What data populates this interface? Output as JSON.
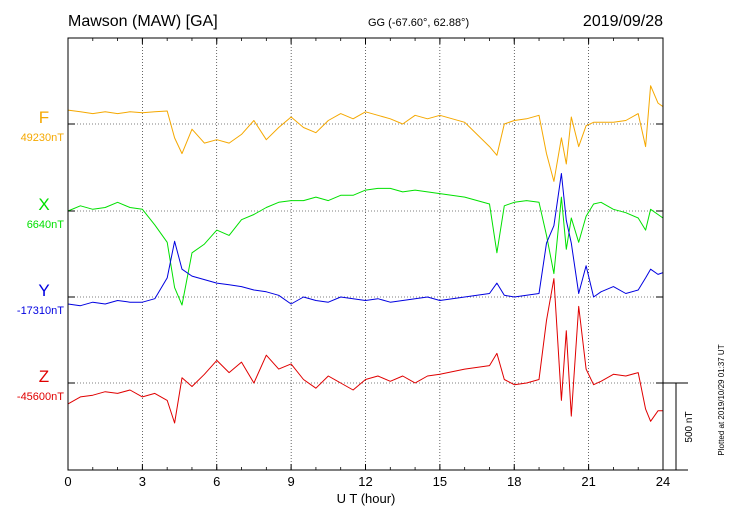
{
  "header": {
    "station": "Mawson (MAW)  [GA]",
    "coords": "GG (-67.60°,  62.88°)",
    "date": "2019/09/28"
  },
  "footer": {
    "plotted": "Plotted at 2019/10/29 01:37  UT"
  },
  "chart_data": {
    "type": "line",
    "xlabel": "U T (hour)",
    "xlim": [
      0,
      24
    ],
    "xticks": [
      "0",
      "3",
      "6",
      "9",
      "12",
      "15",
      "18",
      "21",
      "24"
    ],
    "scale_bar": {
      "label": "500 nT",
      "value": 500
    },
    "grid": true,
    "series": [
      {
        "name": "F",
        "baseline_label": "49230nT",
        "baseline": 49230,
        "color": "#f5a800",
        "points": [
          [
            0,
            49310
          ],
          [
            0.5,
            49300
          ],
          [
            1,
            49290
          ],
          [
            1.5,
            49300
          ],
          [
            2,
            49290
          ],
          [
            2.5,
            49300
          ],
          [
            3,
            49295
          ],
          [
            3.5,
            49300
          ],
          [
            4,
            49305
          ],
          [
            4.3,
            49150
          ],
          [
            4.6,
            49060
          ],
          [
            5,
            49200
          ],
          [
            5.5,
            49120
          ],
          [
            6,
            49140
          ],
          [
            6.5,
            49120
          ],
          [
            7,
            49170
          ],
          [
            7.5,
            49250
          ],
          [
            8,
            49140
          ],
          [
            8.5,
            49210
          ],
          [
            9,
            49270
          ],
          [
            9.5,
            49210
          ],
          [
            10,
            49180
          ],
          [
            10.5,
            49250
          ],
          [
            11,
            49290
          ],
          [
            11.5,
            49260
          ],
          [
            12,
            49300
          ],
          [
            12.5,
            49280
          ],
          [
            13,
            49260
          ],
          [
            13.5,
            49230
          ],
          [
            14,
            49280
          ],
          [
            14.5,
            49260
          ],
          [
            15,
            49280
          ],
          [
            16,
            49240
          ],
          [
            17,
            49100
          ],
          [
            17.3,
            49050
          ],
          [
            17.6,
            49230
          ],
          [
            18,
            49250
          ],
          [
            18.5,
            49260
          ],
          [
            19,
            49280
          ],
          [
            19.3,
            49060
          ],
          [
            19.6,
            48900
          ],
          [
            19.9,
            49150
          ],
          [
            20.1,
            49000
          ],
          [
            20.3,
            49270
          ],
          [
            20.6,
            49100
          ],
          [
            20.9,
            49220
          ],
          [
            21.2,
            49240
          ],
          [
            21.5,
            49240
          ],
          [
            22,
            49240
          ],
          [
            22.5,
            49250
          ],
          [
            23,
            49290
          ],
          [
            23.3,
            49100
          ],
          [
            23.5,
            49450
          ],
          [
            23.8,
            49350
          ],
          [
            24,
            49330
          ]
        ]
      },
      {
        "name": "X",
        "baseline_label": "6640nT",
        "baseline": 6640,
        "color": "#00e000",
        "points": [
          [
            0,
            6640
          ],
          [
            0.5,
            6670
          ],
          [
            1,
            6650
          ],
          [
            1.5,
            6660
          ],
          [
            2,
            6690
          ],
          [
            2.5,
            6660
          ],
          [
            3,
            6650
          ],
          [
            3.5,
            6560
          ],
          [
            4,
            6460
          ],
          [
            4.3,
            6200
          ],
          [
            4.6,
            6100
          ],
          [
            5,
            6400
          ],
          [
            5.5,
            6450
          ],
          [
            6,
            6530
          ],
          [
            6.5,
            6500
          ],
          [
            7,
            6590
          ],
          [
            7.5,
            6620
          ],
          [
            8,
            6660
          ],
          [
            8.5,
            6690
          ],
          [
            9,
            6700
          ],
          [
            9.5,
            6700
          ],
          [
            10,
            6720
          ],
          [
            10.5,
            6700
          ],
          [
            11,
            6730
          ],
          [
            11.5,
            6730
          ],
          [
            12,
            6760
          ],
          [
            12.5,
            6770
          ],
          [
            13,
            6770
          ],
          [
            13.5,
            6750
          ],
          [
            14,
            6760
          ],
          [
            14.5,
            6750
          ],
          [
            15,
            6740
          ],
          [
            16,
            6720
          ],
          [
            17,
            6680
          ],
          [
            17.3,
            6400
          ],
          [
            17.6,
            6670
          ],
          [
            18,
            6690
          ],
          [
            18.5,
            6700
          ],
          [
            19,
            6690
          ],
          [
            19.3,
            6500
          ],
          [
            19.6,
            6280
          ],
          [
            19.9,
            6720
          ],
          [
            20.1,
            6420
          ],
          [
            20.3,
            6600
          ],
          [
            20.6,
            6460
          ],
          [
            20.9,
            6610
          ],
          [
            21.2,
            6680
          ],
          [
            21.5,
            6690
          ],
          [
            22,
            6650
          ],
          [
            22.5,
            6630
          ],
          [
            23,
            6600
          ],
          [
            23.3,
            6530
          ],
          [
            23.5,
            6650
          ],
          [
            23.8,
            6620
          ],
          [
            24,
            6600
          ]
        ]
      },
      {
        "name": "Y",
        "baseline_label": "-17310nT",
        "baseline": -17310,
        "color": "#0000e0",
        "points": [
          [
            0,
            -17350
          ],
          [
            0.5,
            -17360
          ],
          [
            1,
            -17340
          ],
          [
            1.5,
            -17350
          ],
          [
            2,
            -17330
          ],
          [
            2.5,
            -17340
          ],
          [
            3,
            -17340
          ],
          [
            3.5,
            -17320
          ],
          [
            4,
            -17200
          ],
          [
            4.3,
            -16990
          ],
          [
            4.6,
            -17150
          ],
          [
            5,
            -17190
          ],
          [
            5.5,
            -17210
          ],
          [
            6,
            -17230
          ],
          [
            6.5,
            -17240
          ],
          [
            7,
            -17250
          ],
          [
            7.5,
            -17270
          ],
          [
            8,
            -17280
          ],
          [
            8.5,
            -17300
          ],
          [
            9,
            -17350
          ],
          [
            9.5,
            -17310
          ],
          [
            10,
            -17330
          ],
          [
            10.5,
            -17340
          ],
          [
            11,
            -17310
          ],
          [
            11.5,
            -17320
          ],
          [
            12,
            -17330
          ],
          [
            12.5,
            -17320
          ],
          [
            13,
            -17340
          ],
          [
            13.5,
            -17330
          ],
          [
            14,
            -17320
          ],
          [
            14.5,
            -17310
          ],
          [
            15,
            -17330
          ],
          [
            16,
            -17310
          ],
          [
            17,
            -17290
          ],
          [
            17.3,
            -17230
          ],
          [
            17.6,
            -17300
          ],
          [
            18,
            -17310
          ],
          [
            18.5,
            -17300
          ],
          [
            19,
            -17290
          ],
          [
            19.3,
            -17000
          ],
          [
            19.6,
            -16900
          ],
          [
            19.9,
            -16600
          ],
          [
            20.1,
            -16870
          ],
          [
            20.3,
            -17000
          ],
          [
            20.6,
            -17290
          ],
          [
            20.9,
            -17130
          ],
          [
            21.2,
            -17310
          ],
          [
            21.5,
            -17280
          ],
          [
            22,
            -17250
          ],
          [
            22.5,
            -17290
          ],
          [
            23,
            -17270
          ],
          [
            23.3,
            -17200
          ],
          [
            23.5,
            -17150
          ],
          [
            23.8,
            -17180
          ],
          [
            24,
            -17170
          ]
        ]
      },
      {
        "name": "Z",
        "baseline_label": "-45600nT",
        "baseline": -45600,
        "color": "#e00000",
        "points": [
          [
            0,
            -45720
          ],
          [
            0.5,
            -45680
          ],
          [
            1,
            -45670
          ],
          [
            1.5,
            -45650
          ],
          [
            2,
            -45660
          ],
          [
            2.5,
            -45640
          ],
          [
            3,
            -45680
          ],
          [
            3.5,
            -45660
          ],
          [
            4,
            -45700
          ],
          [
            4.3,
            -45830
          ],
          [
            4.6,
            -45570
          ],
          [
            5,
            -45620
          ],
          [
            5.5,
            -45550
          ],
          [
            6,
            -45470
          ],
          [
            6.5,
            -45540
          ],
          [
            7,
            -45480
          ],
          [
            7.5,
            -45600
          ],
          [
            8,
            -45440
          ],
          [
            8.5,
            -45520
          ],
          [
            9,
            -45490
          ],
          [
            9.5,
            -45580
          ],
          [
            10,
            -45630
          ],
          [
            10.5,
            -45560
          ],
          [
            11,
            -45600
          ],
          [
            11.5,
            -45640
          ],
          [
            12,
            -45580
          ],
          [
            12.5,
            -45560
          ],
          [
            13,
            -45590
          ],
          [
            13.5,
            -45560
          ],
          [
            14,
            -45600
          ],
          [
            14.5,
            -45560
          ],
          [
            15,
            -45550
          ],
          [
            16,
            -45520
          ],
          [
            17,
            -45500
          ],
          [
            17.3,
            -45430
          ],
          [
            17.6,
            -45580
          ],
          [
            18,
            -45610
          ],
          [
            18.5,
            -45600
          ],
          [
            19,
            -45580
          ],
          [
            19.3,
            -45240
          ],
          [
            19.6,
            -45000
          ],
          [
            19.9,
            -45700
          ],
          [
            20.1,
            -45300
          ],
          [
            20.3,
            -45790
          ],
          [
            20.6,
            -45160
          ],
          [
            20.9,
            -45520
          ],
          [
            21.2,
            -45610
          ],
          [
            21.5,
            -45590
          ],
          [
            22,
            -45550
          ],
          [
            22.5,
            -45560
          ],
          [
            23,
            -45540
          ],
          [
            23.3,
            -45750
          ],
          [
            23.5,
            -45820
          ],
          [
            23.8,
            -45760
          ],
          [
            24,
            -45760
          ]
        ]
      }
    ]
  }
}
